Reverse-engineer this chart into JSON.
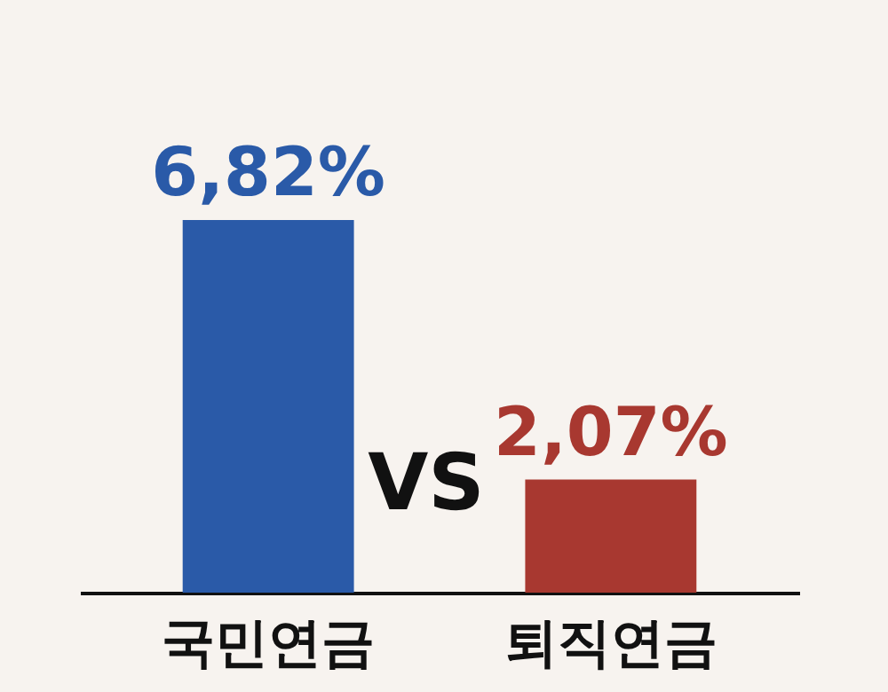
{
  "chart_data": {
    "type": "bar",
    "categories": [
      "국민연금",
      "퇴직연금"
    ],
    "values": [
      6.82,
      2.07
    ],
    "colors": [
      "#2a5aa8",
      "#a83830"
    ],
    "value_labels": [
      "6,82%",
      "2,07%"
    ],
    "annotations": [
      "VS"
    ]
  }
}
